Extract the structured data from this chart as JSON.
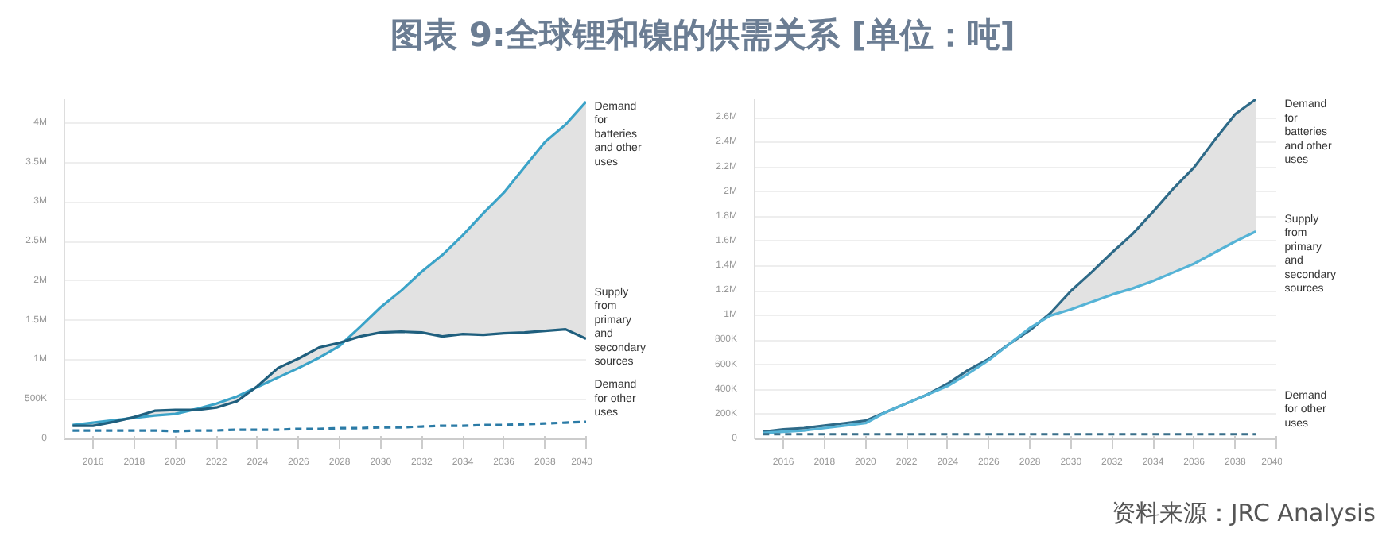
{
  "chart_data": [
    {
      "type": "line",
      "title": "图表 9:全球锂和镍的供需关系 [单位：吨]",
      "x": [
        2015,
        2016,
        2017,
        2018,
        2019,
        2020,
        2021,
        2022,
        2023,
        2024,
        2025,
        2026,
        2027,
        2028,
        2029,
        2030,
        2031,
        2032,
        2033,
        2034,
        2035,
        2036,
        2037,
        2038,
        2039,
        2040
      ],
      "series": [
        {
          "name": "Demand for batteries and other uses",
          "color": "#3ba3c8",
          "values": [
            180000,
            210000,
            240000,
            270000,
            300000,
            320000,
            380000,
            450000,
            540000,
            660000,
            780000,
            900000,
            1030000,
            1180000,
            1420000,
            1670000,
            1880000,
            2120000,
            2330000,
            2580000,
            2860000,
            3120000,
            3440000,
            3760000,
            3980000,
            4270000
          ],
          "lower": [
            170000,
            170000,
            220000,
            280000,
            360000,
            370000,
            370000,
            400000,
            480000,
            670000,
            900000,
            1020000,
            1160000,
            1220000,
            1300000,
            1350000,
            1360000,
            1350000,
            1300000,
            1330000,
            1320000,
            1340000,
            1350000,
            1370000,
            1390000,
            1270000
          ],
          "upper": [
            180000,
            210000,
            240000,
            270000,
            300000,
            320000,
            380000,
            450000,
            540000,
            660000,
            780000,
            900000,
            1030000,
            1180000,
            1420000,
            1670000,
            1880000,
            2120000,
            2330000,
            2580000,
            2860000,
            3120000,
            3440000,
            3760000,
            3980000,
            4270000
          ]
        },
        {
          "name": "Supply from primary and secondary sources",
          "color": "#1f5f7e",
          "values": [
            170000,
            170000,
            220000,
            280000,
            360000,
            370000,
            370000,
            400000,
            480000,
            670000,
            900000,
            1020000,
            1160000,
            1220000,
            1300000,
            1350000,
            1360000,
            1350000,
            1300000,
            1330000,
            1320000,
            1340000,
            1350000,
            1370000,
            1390000,
            1270000
          ]
        },
        {
          "name": "Demand for other uses",
          "color": "#2b7ba6",
          "line_style": "dashed",
          "values": [
            110000,
            110000,
            110000,
            110000,
            110000,
            100000,
            110000,
            110000,
            120000,
            120000,
            120000,
            130000,
            130000,
            140000,
            140000,
            150000,
            150000,
            160000,
            170000,
            170000,
            180000,
            180000,
            190000,
            200000,
            210000,
            220000
          ]
        }
      ],
      "xlim": [
        2014.6,
        2040
      ],
      "xticks": [
        2016,
        2018,
        2020,
        2022,
        2024,
        2026,
        2028,
        2030,
        2032,
        2034,
        2036,
        2038,
        2040
      ],
      "ylim": [
        0,
        4300000
      ],
      "yticks": [
        0,
        {
          "value": 500000,
          "label": "500K"
        },
        {
          "value": 1000000,
          "label": "1M"
        },
        {
          "value": 1500000,
          "label": "1.5M"
        },
        {
          "value": 2000000,
          "label": "2M"
        },
        {
          "value": 2500000,
          "label": "2.5M"
        },
        {
          "value": 3000000,
          "label": "3M"
        },
        {
          "value": 3500000,
          "label": "3.5M"
        },
        {
          "value": 4000000,
          "label": "4M"
        }
      ],
      "grid": "y",
      "legend": false,
      "line_style": "solid"
    },
    {
      "type": "line",
      "annotations": [
        "资料来源：JRC Analysis"
      ],
      "x": [
        2015,
        2016,
        2017,
        2018,
        2019,
        2020,
        2021,
        2022,
        2023,
        2024,
        2025,
        2026,
        2027,
        2028,
        2029,
        2030,
        2031,
        2032,
        2033,
        2034,
        2035,
        2036,
        2037,
        2038,
        2039
      ],
      "series": [
        {
          "name": "Demand for batteries and other uses",
          "color": "#2e6a88",
          "values": [
            60000,
            80000,
            90000,
            110000,
            130000,
            150000,
            220000,
            290000,
            360000,
            450000,
            560000,
            650000,
            770000,
            880000,
            1020000,
            1200000,
            1350000,
            1510000,
            1660000,
            1840000,
            2030000,
            2200000,
            2420000,
            2630000,
            2750000
          ],
          "lower": [
            50000,
            60000,
            70000,
            90000,
            110000,
            130000,
            220000,
            290000,
            360000,
            430000,
            530000,
            640000,
            770000,
            900000,
            1000000,
            1050000,
            1110000,
            1170000,
            1220000,
            1280000,
            1350000,
            1420000,
            1510000,
            1600000,
            1680000
          ],
          "upper": [
            60000,
            80000,
            90000,
            110000,
            130000,
            150000,
            220000,
            290000,
            360000,
            450000,
            560000,
            650000,
            770000,
            880000,
            1020000,
            1200000,
            1350000,
            1510000,
            1660000,
            1840000,
            2030000,
            2200000,
            2420000,
            2630000,
            2750000
          ]
        },
        {
          "name": "Supply from primary and secondary sources",
          "color": "#55b3d6",
          "values": [
            50000,
            60000,
            70000,
            90000,
            110000,
            130000,
            220000,
            290000,
            360000,
            430000,
            530000,
            640000,
            770000,
            900000,
            1000000,
            1050000,
            1110000,
            1170000,
            1220000,
            1280000,
            1350000,
            1420000,
            1510000,
            1600000,
            1680000
          ]
        },
        {
          "name": "Demand for other uses",
          "color": "#3a6f8a",
          "line_style": "dashed",
          "values": [
            40000,
            40000,
            40000,
            40000,
            40000,
            40000,
            40000,
            40000,
            40000,
            40000,
            40000,
            40000,
            40000,
            40000,
            40000,
            40000,
            40000,
            40000,
            40000,
            40000,
            40000,
            40000,
            40000,
            40000,
            40000
          ]
        }
      ],
      "xlim": [
        2014.6,
        2040
      ],
      "xticks": [
        2016,
        2018,
        2020,
        2022,
        2024,
        2026,
        2028,
        2030,
        2032,
        2034,
        2036,
        2038,
        2040
      ],
      "ylim": [
        0,
        2750000
      ],
      "yticks": [
        0,
        {
          "value": 200000,
          "label": "200K"
        },
        {
          "value": 400000,
          "label": "400K"
        },
        {
          "value": 600000,
          "label": "600K"
        },
        {
          "value": 800000,
          "label": "800K"
        },
        {
          "value": 1000000,
          "label": "1M"
        },
        {
          "value": 1200000,
          "label": "1.2M"
        },
        {
          "value": 1400000,
          "label": "1.4M"
        },
        {
          "value": 1600000,
          "label": "1.6M"
        },
        {
          "value": 1800000,
          "label": "1.8M"
        },
        {
          "value": 2000000,
          "label": "2M"
        },
        {
          "value": 2200000,
          "label": "2.2M"
        },
        {
          "value": 2400000,
          "label": "2.4M"
        },
        {
          "value": 2600000,
          "label": "2.6M"
        }
      ],
      "grid": "y",
      "legend": false,
      "line_style": "solid"
    }
  ]
}
